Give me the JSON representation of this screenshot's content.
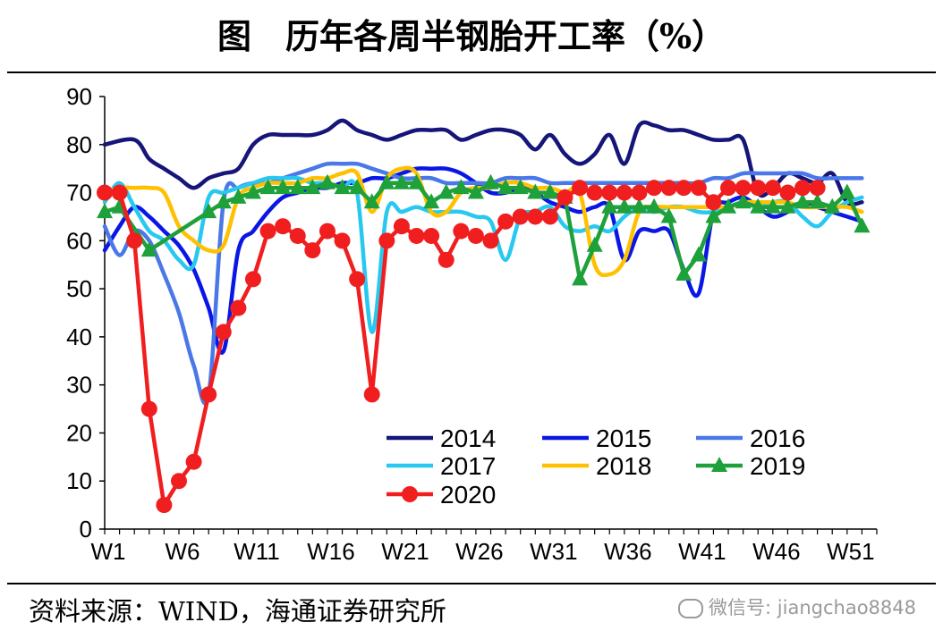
{
  "title": "图　历年各周半钢胎开工率（%）",
  "source": "资料来源：WIND，海通证券研究所",
  "watermark": "微信号: jiangchao8848",
  "chart_data": {
    "type": "line",
    "title": "图　历年各周半钢胎开工率（%）",
    "xlabel": "",
    "ylabel": "",
    "ylim": [
      0,
      90
    ],
    "yticks": [
      0,
      10,
      20,
      30,
      40,
      50,
      60,
      70,
      80,
      90
    ],
    "xlim": [
      1,
      53
    ],
    "xtick_positions": [
      1,
      6,
      11,
      16,
      21,
      26,
      31,
      36,
      41,
      46,
      51
    ],
    "xtick_labels": [
      "W1",
      "W6",
      "W11",
      "W16",
      "W21",
      "W26",
      "W31",
      "W36",
      "W41",
      "W46",
      "W51"
    ],
    "grid": false,
    "legend": "bottom-right",
    "series": [
      {
        "name": "2014",
        "color": "#15157a",
        "marker": "none",
        "smooth": true,
        "x": [
          1,
          3,
          4,
          5,
          6,
          7,
          8,
          9,
          10,
          11,
          12,
          13,
          14,
          15,
          16,
          17,
          18,
          19,
          20,
          21,
          22,
          23,
          24,
          25,
          26,
          27,
          28,
          29,
          30,
          31,
          32,
          33,
          34,
          35,
          36,
          37,
          38,
          39,
          40,
          41,
          42,
          43,
          44,
          45,
          46,
          47,
          48,
          49,
          50,
          51,
          52
        ],
        "values": [
          80,
          81,
          77,
          75,
          73,
          71,
          73,
          74,
          75,
          80,
          82,
          82,
          82,
          82,
          83,
          85,
          83,
          82,
          81,
          82,
          83,
          83,
          83,
          81,
          82,
          83,
          83,
          82,
          79,
          82,
          78,
          76,
          78,
          82,
          76,
          84,
          84,
          83,
          83,
          82,
          81,
          81,
          81,
          70,
          71,
          74,
          73,
          72,
          74,
          68,
          68
        ]
      },
      {
        "name": "2015",
        "color": "#0a16e6",
        "marker": "none",
        "smooth": true,
        "x": [
          1,
          2,
          3,
          4,
          5,
          6,
          7,
          8,
          9,
          10,
          11,
          12,
          13,
          14,
          15,
          16,
          17,
          18,
          19,
          20,
          21,
          22,
          23,
          24,
          25,
          26,
          27,
          28,
          29,
          30,
          31,
          32,
          33,
          34,
          35,
          36,
          37,
          38,
          39,
          40,
          41,
          42,
          43,
          44,
          45,
          46,
          47,
          48,
          49,
          50,
          51,
          52
        ],
        "values": [
          58,
          63,
          67,
          65,
          62,
          59,
          54,
          46,
          37,
          58,
          62,
          66,
          69,
          70,
          71,
          71,
          72,
          72,
          73,
          73,
          74,
          75,
          75,
          75,
          74,
          72,
          70,
          70,
          71,
          70,
          68,
          67,
          66,
          67,
          67,
          56,
          62,
          62,
          62,
          54,
          49,
          66,
          68,
          69,
          67,
          65,
          66,
          68,
          67,
          66,
          65,
          64
        ]
      },
      {
        "name": "2016",
        "color": "#4a78e8",
        "marker": "none",
        "smooth": true,
        "x": [
          1,
          2,
          3,
          4,
          5,
          6,
          7,
          8,
          9,
          10,
          11,
          12,
          13,
          14,
          15,
          16,
          17,
          18,
          19,
          20,
          21,
          22,
          23,
          24,
          25,
          26,
          27,
          28,
          29,
          30,
          31,
          32,
          33,
          34,
          35,
          36,
          37,
          38,
          39,
          40,
          41,
          42,
          43,
          44,
          45,
          46,
          47,
          48,
          49,
          50,
          51,
          52
        ],
        "values": [
          63,
          57,
          62,
          60,
          53,
          45,
          34,
          28,
          68,
          71,
          72,
          72,
          73,
          74,
          75,
          76,
          76,
          76,
          75,
          74,
          73,
          73,
          73,
          72,
          72,
          72,
          72,
          73,
          73,
          73,
          72,
          72,
          72,
          72,
          72,
          72,
          72,
          72,
          72,
          72,
          72,
          73,
          73,
          74,
          74,
          74,
          74,
          74,
          73,
          73,
          73,
          73
        ]
      },
      {
        "name": "2017",
        "color": "#28c8f0",
        "marker": "none",
        "smooth": true,
        "x": [
          1,
          2,
          3,
          4,
          5,
          6,
          7,
          8,
          9,
          10,
          11,
          12,
          13,
          14,
          15,
          16,
          17,
          18,
          19,
          20,
          21,
          22,
          23,
          24,
          25,
          26,
          27,
          28,
          29,
          30,
          31,
          32,
          33,
          34,
          35,
          36,
          37,
          38,
          39,
          40,
          41,
          42,
          43,
          44,
          45,
          46,
          47,
          48,
          49,
          50,
          51,
          52
        ],
        "values": [
          68,
          72,
          67,
          62,
          60,
          56,
          55,
          69,
          70,
          71,
          72,
          73,
          73,
          73,
          72,
          72,
          71,
          70,
          41,
          66,
          66,
          67,
          66,
          66,
          66,
          65,
          64,
          56,
          65,
          66,
          67,
          63,
          62,
          63,
          62,
          65,
          67,
          66,
          67,
          67,
          66,
          66,
          67,
          68,
          67,
          68,
          68,
          65,
          63,
          66,
          68,
          69
        ]
      },
      {
        "name": "2018",
        "color": "#ffc000",
        "marker": "none",
        "smooth": true,
        "x": [
          1,
          2,
          3,
          4,
          5,
          6,
          7,
          8,
          9,
          10,
          11,
          12,
          13,
          14,
          15,
          16,
          17,
          18,
          19,
          20,
          21,
          22,
          23,
          24,
          25,
          26,
          27,
          28,
          29,
          30,
          31,
          32,
          33,
          34,
          35,
          36,
          37,
          38,
          39,
          40,
          41,
          42,
          43,
          44,
          45,
          46,
          47,
          48,
          49,
          50,
          51,
          52
        ],
        "values": [
          70,
          71,
          71,
          71,
          70,
          63,
          60,
          58,
          59,
          69,
          71,
          72,
          72,
          72,
          73,
          73,
          74,
          74,
          66,
          73,
          75,
          74,
          66,
          66,
          70,
          71,
          71,
          72,
          72,
          71,
          71,
          70,
          70,
          55,
          53,
          56,
          66,
          67,
          67,
          67,
          67,
          67,
          67,
          68,
          68,
          68,
          68,
          67,
          67,
          67,
          67,
          66
        ]
      },
      {
        "name": "2019",
        "color": "#1ea03a",
        "marker": "triangle",
        "smooth": false,
        "x": [
          1,
          2,
          4,
          8,
          9,
          10,
          11,
          12,
          13,
          14,
          15,
          16,
          17,
          18,
          19,
          20,
          21,
          22,
          23,
          24,
          25,
          26,
          27,
          28,
          29,
          30,
          31,
          32,
          33,
          34,
          35,
          36,
          37,
          38,
          39,
          40,
          41,
          42,
          43,
          44,
          45,
          46,
          47,
          48,
          49,
          50,
          51,
          52
        ],
        "values": [
          66,
          67,
          58,
          66,
          68,
          69,
          70,
          71,
          71,
          71,
          71,
          72,
          71,
          71,
          68,
          72,
          72,
          72,
          68,
          70,
          71,
          70,
          72,
          71,
          71,
          70,
          70,
          69,
          52,
          59,
          67,
          67,
          67,
          67,
          65,
          53,
          57,
          65,
          67,
          68,
          67,
          67,
          67,
          68,
          68,
          67,
          70,
          63
        ]
      },
      {
        "name": "2020",
        "color": "#f01e1e",
        "marker": "circle",
        "smooth": false,
        "x": [
          1,
          2,
          3,
          4,
          5,
          6,
          7,
          8,
          9,
          10,
          11,
          12,
          13,
          14,
          15,
          16,
          17,
          18,
          19,
          20,
          21,
          22,
          23,
          24,
          25,
          26,
          27,
          28,
          29,
          30,
          31,
          32,
          33,
          34,
          35,
          36,
          37,
          38,
          39,
          40,
          41,
          42,
          43,
          44,
          45,
          46,
          47,
          48,
          49
        ],
        "values": [
          70,
          70,
          60,
          25,
          5,
          10,
          14,
          28,
          41,
          46,
          52,
          62,
          63,
          61,
          58,
          62,
          60,
          52,
          28,
          60,
          63,
          61,
          61,
          56,
          62,
          61,
          60,
          64,
          65,
          65,
          65,
          69,
          71,
          70,
          70,
          70,
          70,
          71,
          71,
          71,
          71,
          68,
          71,
          71,
          71,
          71,
          70,
          71,
          71
        ]
      }
    ]
  }
}
